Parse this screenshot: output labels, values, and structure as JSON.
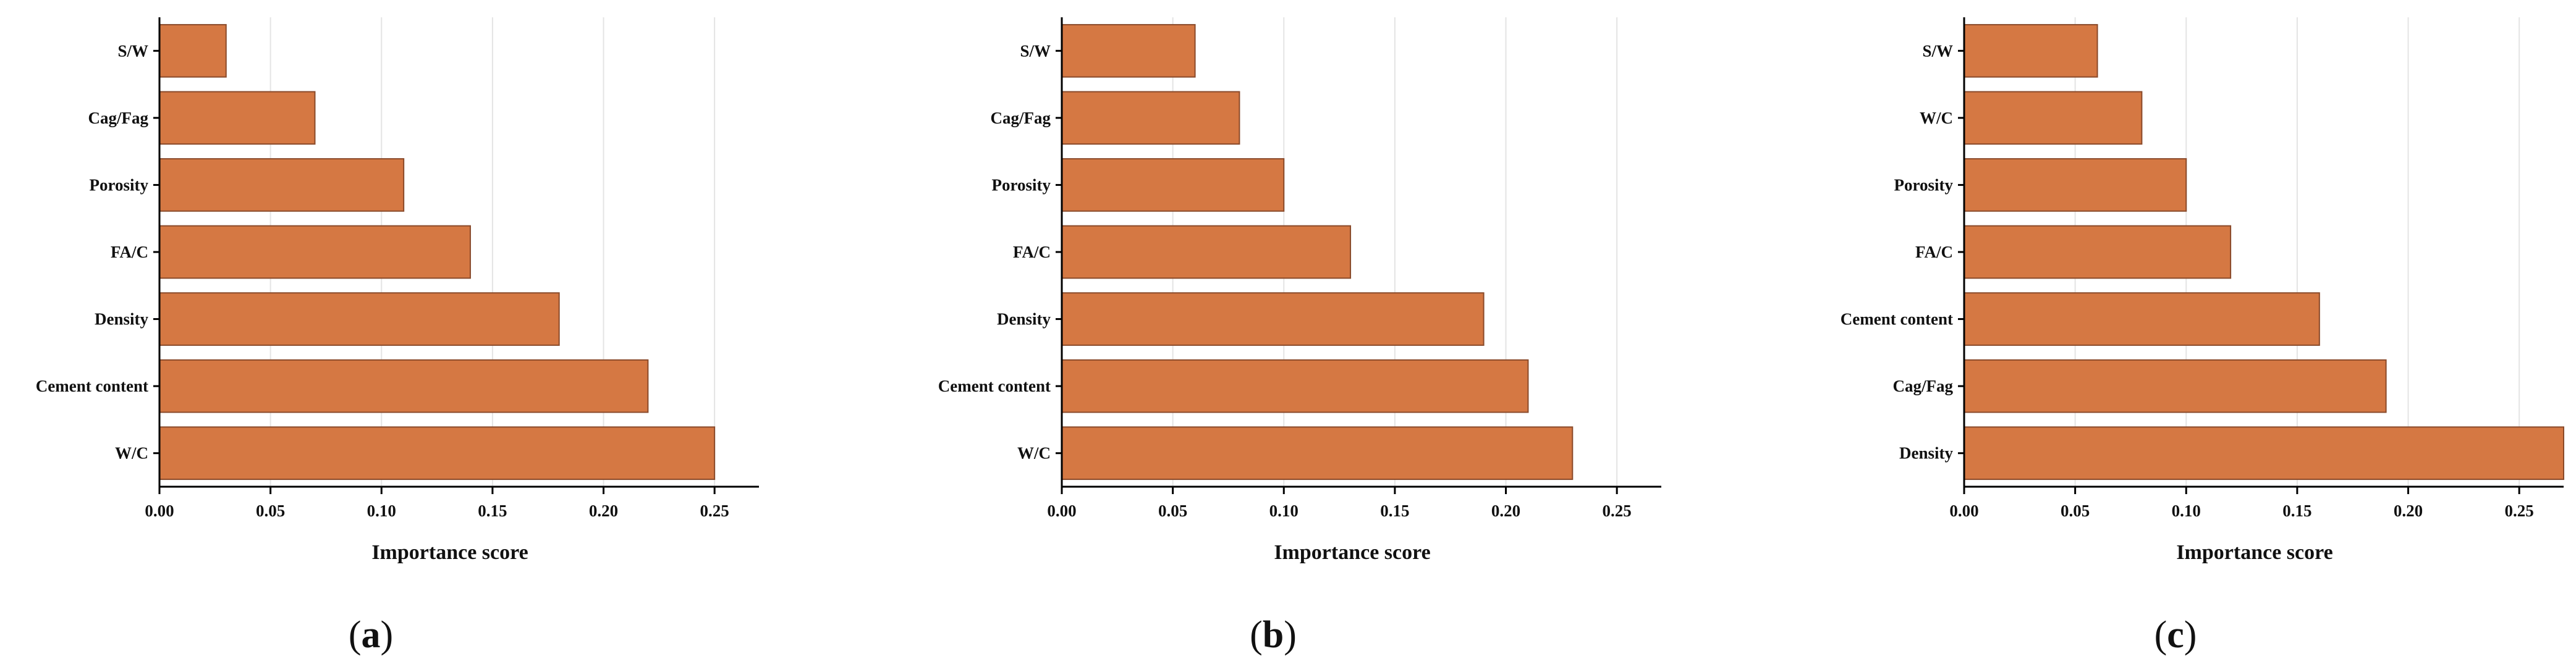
{
  "style": {
    "bar_fill": "#d57843",
    "bar_stroke": "#8a4a2a",
    "axis_color": "#000000",
    "grid_color": "#e4e4e4"
  },
  "chart_data": [
    {
      "type": "bar",
      "orientation": "horizontal",
      "panel_label": "a",
      "xlabel": "Importance score",
      "ylabel": "",
      "xlim": [
        0,
        0.27
      ],
      "xticks": [
        "0.00",
        "0.05",
        "0.10",
        "0.15",
        "0.20",
        "0.25"
      ],
      "categories": [
        "S/W",
        "Cag/Fag",
        "Porosity",
        "FA/C",
        "Density",
        "Cement content",
        "W/C"
      ],
      "values": [
        0.03,
        0.07,
        0.11,
        0.14,
        0.18,
        0.22,
        0.25
      ]
    },
    {
      "type": "bar",
      "orientation": "horizontal",
      "panel_label": "b",
      "xlabel": "Importance score",
      "ylabel": "",
      "xlim": [
        0,
        0.27
      ],
      "xticks": [
        "0.00",
        "0.05",
        "0.10",
        "0.15",
        "0.20",
        "0.25"
      ],
      "categories": [
        "S/W",
        "Cag/Fag",
        "Porosity",
        "FA/C",
        "Density",
        "Cement content",
        "W/C"
      ],
      "values": [
        0.06,
        0.08,
        0.1,
        0.13,
        0.19,
        0.21,
        0.23
      ]
    },
    {
      "type": "bar",
      "orientation": "horizontal",
      "panel_label": "c",
      "xlabel": "Importance score",
      "ylabel": "",
      "xlim": [
        0,
        0.27
      ],
      "xticks": [
        "0.00",
        "0.05",
        "0.10",
        "0.15",
        "0.20",
        "0.25"
      ],
      "categories": [
        "S/W",
        "W/C",
        "Porosity",
        "FA/C",
        "Cement content",
        "Cag/Fag",
        "Density"
      ],
      "values": [
        0.06,
        0.08,
        0.1,
        0.12,
        0.16,
        0.19,
        0.27
      ]
    }
  ]
}
